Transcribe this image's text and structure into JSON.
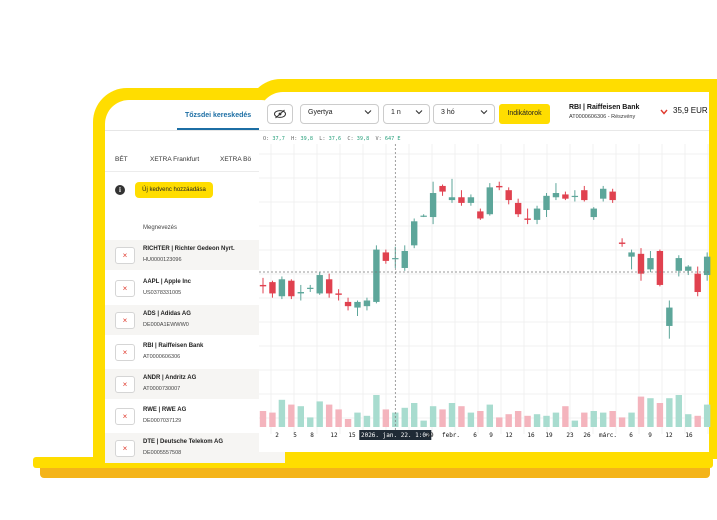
{
  "phone": {
    "tab_label": "Tőzsdei kereskedés",
    "exchanges": [
      "BÉT",
      "XETRA Frankfurt",
      "XETRA Bö"
    ],
    "info_icon": "info-icon",
    "add_favourite_label": "Új kedvenc hozzáadása",
    "column_header": "Megnevezés",
    "rows": [
      {
        "name": "RICHTER | Richter Gedeon Nyrt.",
        "isin": "HU0000123096"
      },
      {
        "name": "AAPL | Apple Inc",
        "isin": "US0378331005"
      },
      {
        "name": "ADS | Adidas AG",
        "isin": "DE000A1EWWW0"
      },
      {
        "name": "RBI | Raiffeisen Bank",
        "isin": "AT0000606306"
      },
      {
        "name": "ANDR | Andritz AG",
        "isin": "AT0000730007"
      },
      {
        "name": "RWE | RWE AG",
        "isin": "DE0007037129"
      },
      {
        "name": "DTE | Deutsche Telekom AG",
        "isin": "DE0005557508"
      }
    ],
    "remove_glyph": "×"
  },
  "toolbar": {
    "eye_icon": "eye-off-icon",
    "chart_type": "Gyertya",
    "interval": "1 n",
    "range": "3 hó",
    "indicators_label": "Indikátorok",
    "instrument_title": "RBI | Raiffeisen Bank",
    "instrument_sub": "AT0000606306 - Részvény",
    "price": "35,9 EUR",
    "price_direction_icon": "chevron-down-icon",
    "down_color": "#e03b2f"
  },
  "ohlc": {
    "o_label": "O:",
    "o": "37,7",
    "h_label": "H:",
    "h": "39,8",
    "l_label": "L:",
    "l": "37,6",
    "c_label": "C:",
    "c": "39,8",
    "v_label": "V:",
    "v": "647 E"
  },
  "chart_data": {
    "type": "candlestick",
    "x_tick_labels": [
      "2",
      "5",
      "8",
      "12",
      "15",
      "2026. jan. 22. 1:00",
      "29",
      "febr.",
      "6",
      "9",
      "12",
      "16",
      "19",
      "23",
      "26",
      "márc.",
      "6",
      "9",
      "12",
      "16"
    ],
    "crosshair_label": "2026. jan. 22. 1:00",
    "up_color": "#5da69a",
    "down_color": "#e0414f",
    "volume_up_color": "#a8dccf",
    "volume_down_color": "#f4b4bd",
    "grid": true,
    "candles": [
      {
        "o": 31.6,
        "h": 32.1,
        "l": 31.0,
        "c": 31.5,
        "v": 1.0
      },
      {
        "o": 31.8,
        "h": 31.9,
        "l": 30.7,
        "c": 31.0,
        "v": 0.9
      },
      {
        "o": 30.8,
        "h": 32.2,
        "l": 30.6,
        "c": 32.0,
        "v": 1.7
      },
      {
        "o": 31.9,
        "h": 32.0,
        "l": 30.6,
        "c": 30.8,
        "v": 1.4
      },
      {
        "o": 31.0,
        "h": 31.6,
        "l": 30.5,
        "c": 31.1,
        "v": 1.3
      },
      {
        "o": 31.4,
        "h": 31.6,
        "l": 31.1,
        "c": 31.4,
        "v": 0.6
      },
      {
        "o": 31.0,
        "h": 32.5,
        "l": 30.9,
        "c": 32.3,
        "v": 1.6
      },
      {
        "o": 32.0,
        "h": 32.4,
        "l": 30.7,
        "c": 31.0,
        "v": 1.4
      },
      {
        "o": 31.0,
        "h": 31.3,
        "l": 30.5,
        "c": 30.9,
        "v": 1.1
      },
      {
        "o": 30.4,
        "h": 30.7,
        "l": 29.8,
        "c": 30.1,
        "v": 0.5
      },
      {
        "o": 30.0,
        "h": 30.5,
        "l": 29.4,
        "c": 30.4,
        "v": 0.9
      },
      {
        "o": 30.1,
        "h": 30.7,
        "l": 29.8,
        "c": 30.5,
        "v": 0.7
      },
      {
        "o": 30.4,
        "h": 34.4,
        "l": 30.3,
        "c": 34.1,
        "v": 2.0
      },
      {
        "o": 33.9,
        "h": 34.1,
        "l": 33.1,
        "c": 33.3,
        "v": 1.1
      },
      {
        "o": 33.5,
        "h": 34.3,
        "l": 32.8,
        "c": 33.5,
        "v": 0.9
      },
      {
        "o": 32.8,
        "h": 34.4,
        "l": 32.6,
        "c": 34.0,
        "v": 1.2
      },
      {
        "o": 34.4,
        "h": 36.3,
        "l": 34.2,
        "c": 36.1,
        "v": 1.5
      },
      {
        "o": 36.5,
        "h": 36.6,
        "l": 36.4,
        "c": 36.5,
        "v": 0.4
      },
      {
        "o": 36.4,
        "h": 38.9,
        "l": 35.9,
        "c": 38.1,
        "v": 1.3
      },
      {
        "o": 38.6,
        "h": 38.7,
        "l": 37.9,
        "c": 38.2,
        "v": 1.1
      },
      {
        "o": 37.6,
        "h": 39.1,
        "l": 37.4,
        "c": 37.8,
        "v": 1.5
      },
      {
        "o": 37.8,
        "h": 38.3,
        "l": 37.2,
        "c": 37.4,
        "v": 1.3
      },
      {
        "o": 37.4,
        "h": 38.0,
        "l": 37.2,
        "c": 37.8,
        "v": 0.9
      },
      {
        "o": 36.8,
        "h": 37.0,
        "l": 36.2,
        "c": 36.3,
        "v": 1.0
      },
      {
        "o": 36.6,
        "h": 38.8,
        "l": 36.5,
        "c": 38.5,
        "v": 1.4
      },
      {
        "o": 38.6,
        "h": 38.9,
        "l": 38.3,
        "c": 38.5,
        "v": 0.6
      },
      {
        "o": 38.3,
        "h": 38.5,
        "l": 37.3,
        "c": 37.6,
        "v": 0.8
      },
      {
        "o": 37.4,
        "h": 37.7,
        "l": 36.4,
        "c": 36.6,
        "v": 1.0
      },
      {
        "o": 36.3,
        "h": 37.0,
        "l": 35.9,
        "c": 36.2,
        "v": 0.7
      },
      {
        "o": 36.2,
        "h": 37.2,
        "l": 35.9,
        "c": 37.0,
        "v": 0.8
      },
      {
        "o": 36.9,
        "h": 38.1,
        "l": 36.4,
        "c": 37.9,
        "v": 0.7
      },
      {
        "o": 37.8,
        "h": 38.8,
        "l": 37.6,
        "c": 38.1,
        "v": 0.9
      },
      {
        "o": 38.0,
        "h": 38.2,
        "l": 37.6,
        "c": 37.7,
        "v": 1.3
      },
      {
        "o": 37.9,
        "h": 38.3,
        "l": 37.5,
        "c": 37.9,
        "v": 0.4
      },
      {
        "o": 38.3,
        "h": 38.6,
        "l": 37.5,
        "c": 37.6,
        "v": 0.9
      },
      {
        "o": 36.4,
        "h": 37.1,
        "l": 36.2,
        "c": 37.0,
        "v": 1.0
      },
      {
        "o": 37.7,
        "h": 38.6,
        "l": 37.5,
        "c": 38.4,
        "v": 0.9
      },
      {
        "o": 38.2,
        "h": 38.4,
        "l": 37.4,
        "c": 37.6,
        "v": 1.0
      },
      {
        "o": 34.6,
        "h": 34.9,
        "l": 34.3,
        "c": 34.5,
        "v": 0.6
      },
      {
        "o": 33.6,
        "h": 34.1,
        "l": 32.7,
        "c": 33.9,
        "v": 0.9
      },
      {
        "o": 33.8,
        "h": 34.2,
        "l": 31.9,
        "c": 32.4,
        "v": 1.9
      },
      {
        "o": 32.7,
        "h": 34.0,
        "l": 32.5,
        "c": 33.5,
        "v": 1.8
      },
      {
        "o": 34.0,
        "h": 34.1,
        "l": 31.5,
        "c": 31.6,
        "v": 1.5
      },
      {
        "o": 28.7,
        "h": 30.5,
        "l": 27.8,
        "c": 30.0,
        "v": 1.8
      },
      {
        "o": 32.6,
        "h": 33.7,
        "l": 32.2,
        "c": 33.5,
        "v": 2.0
      },
      {
        "o": 32.6,
        "h": 33.0,
        "l": 32.3,
        "c": 32.9,
        "v": 0.8
      },
      {
        "o": 32.4,
        "h": 32.9,
        "l": 30.8,
        "c": 31.1,
        "v": 0.7
      },
      {
        "o": 32.3,
        "h": 33.9,
        "l": 31.9,
        "c": 33.6,
        "v": 1.4
      }
    ]
  }
}
